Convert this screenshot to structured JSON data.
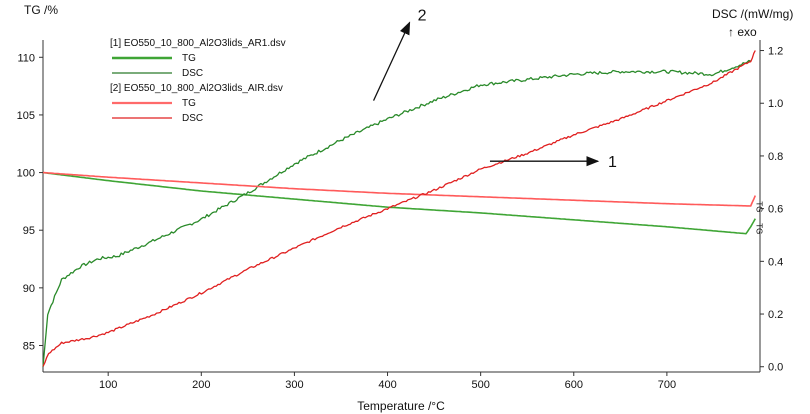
{
  "chart_data": {
    "type": "line",
    "xlabel": "Temperature /°C",
    "ylabel_left": "TG /%",
    "ylabel_right": "DSC /(mW/mg)",
    "exo_label": "↑ exo",
    "xlim": [
      30,
      800
    ],
    "ylim_left": [
      82.7,
      111.5
    ],
    "ylim_right": [
      -0.02,
      1.24
    ],
    "x_ticks": [
      100,
      200,
      300,
      400,
      500,
      600,
      700
    ],
    "y_left_ticks": [
      85,
      90,
      95,
      100,
      105,
      110
    ],
    "y_right_ticks": [
      0.0,
      0.2,
      0.4,
      0.6,
      0.8,
      1.0,
      1.2
    ],
    "y_right_tick_labels": [
      "0.0",
      "0.2",
      "0.4",
      "0.6",
      "0.8",
      "1.0",
      "1.2"
    ],
    "grid": false,
    "legend": {
      "position": "top-left",
      "groups": [
        {
          "file": "[1] EO550_10_800_Al2O3lids_AR1.dsv",
          "entries": [
            {
              "label": "TG",
              "color": "#3fa535",
              "width": 2.4
            },
            {
              "label": "DSC",
              "color": "#2a7a2a",
              "width": 1.3
            }
          ]
        },
        {
          "file": "[2] EO550_10_800_Al2O3lids_AIR.dsv",
          "entries": [
            {
              "label": "TG",
              "color": "#ff6a6a",
              "width": 2.2
            },
            {
              "label": "DSC",
              "color": "#e02020",
              "width": 1.3
            }
          ]
        }
      ]
    },
    "series": [
      {
        "axis": "left",
        "color": "#3fa535",
        "width": 1.6,
        "x": [
          30,
          100,
          200,
          300,
          400,
          500,
          600,
          700,
          785,
          790,
          795
        ],
        "y": [
          100.0,
          99.3,
          98.4,
          97.7,
          97.0,
          96.5,
          95.9,
          95.3,
          94.7,
          95.3,
          96.0
        ]
      },
      {
        "axis": "right",
        "color": "#2a8a2a",
        "width": 1.3,
        "noise": 0.006,
        "x": [
          30,
          35,
          50,
          70,
          90,
          110,
          150,
          200,
          250,
          300,
          350,
          400,
          450,
          500,
          550,
          600,
          650,
          700,
          750,
          790
        ],
        "y": [
          0.0,
          0.2,
          0.33,
          0.38,
          0.41,
          0.42,
          0.48,
          0.56,
          0.66,
          0.77,
          0.86,
          0.94,
          1.01,
          1.07,
          1.09,
          1.11,
          1.12,
          1.12,
          1.11,
          1.16
        ]
      },
      {
        "axis": "left",
        "color": "#ff5a5a",
        "width": 1.6,
        "x": [
          30,
          100,
          200,
          300,
          400,
          500,
          600,
          700,
          790,
          795
        ],
        "y": [
          100.0,
          99.6,
          99.1,
          98.6,
          98.2,
          97.9,
          97.6,
          97.3,
          97.1,
          98.0
        ]
      },
      {
        "axis": "right",
        "color": "#e02020",
        "width": 1.3,
        "noise": 0.004,
        "x": [
          30,
          36,
          50,
          80,
          100,
          150,
          200,
          250,
          300,
          350,
          400,
          450,
          500,
          550,
          600,
          650,
          700,
          750,
          790,
          795
        ],
        "y": [
          0.0,
          0.05,
          0.09,
          0.11,
          0.13,
          0.2,
          0.28,
          0.37,
          0.45,
          0.53,
          0.6,
          0.67,
          0.75,
          0.81,
          0.88,
          0.94,
          1.01,
          1.08,
          1.16,
          1.2
        ]
      }
    ],
    "annotations": [
      {
        "label": "2",
        "arrow_x": 385,
        "arrow_y": 1.01
      },
      {
        "label": "1",
        "arrow_x": 510,
        "arrow_y": 0.78
      }
    ],
    "end_labels": [
      {
        "text": "TG",
        "color": "#2a8a2a",
        "x": 796,
        "y_left": 95.6
      },
      {
        "text": "TG",
        "color": "#e02020",
        "x": 796,
        "y_left": 97.5
      }
    ]
  }
}
